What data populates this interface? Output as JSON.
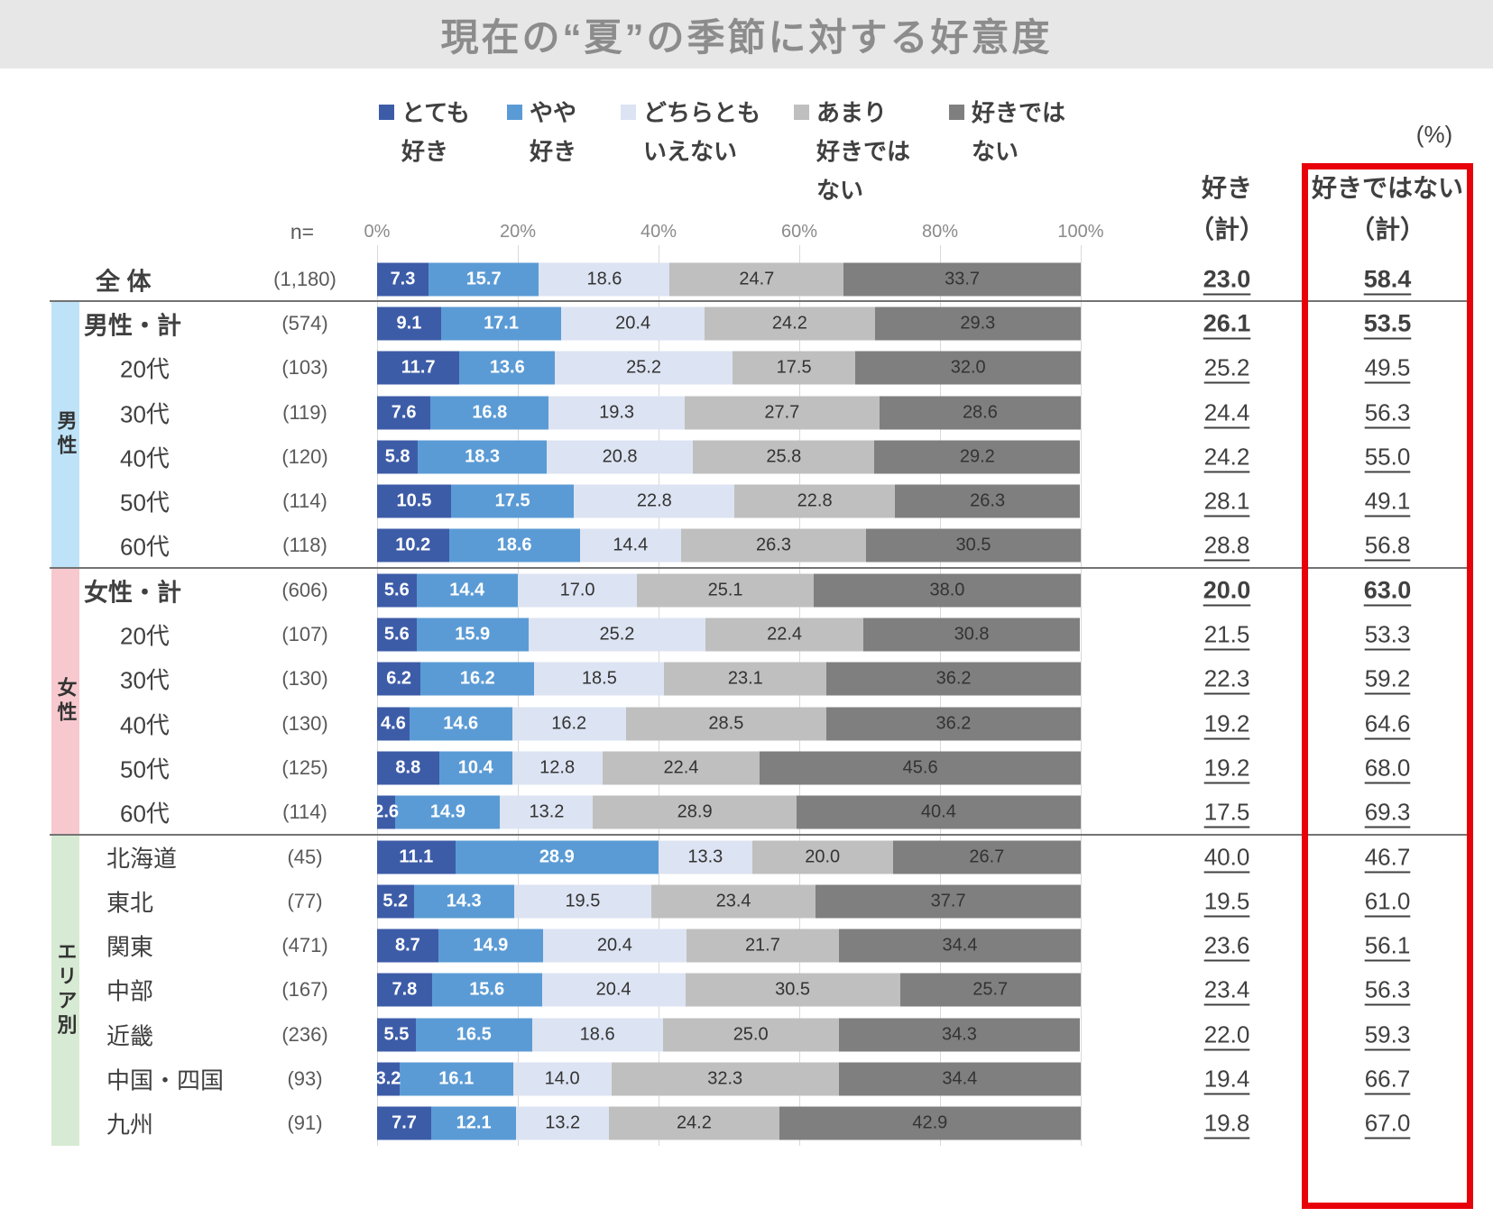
{
  "title": "現在の“夏”の季節に対する好意度",
  "unit_label": "(%)",
  "n_label": "n=",
  "column_headers": {
    "like": [
      "好き",
      "（計）"
    ],
    "dislike": [
      "好きではない",
      "（計）"
    ]
  },
  "highlight": {
    "box_color": "#e8000b",
    "target": "dislike-total-column"
  },
  "legend": [
    {
      "name": "とても好き",
      "lines": [
        "とても",
        "好き"
      ],
      "color": "#3d5ca8"
    },
    {
      "name": "やや好き",
      "lines": [
        "やや",
        "好き"
      ],
      "color": "#5b9bd5"
    },
    {
      "name": "どちらともいえない",
      "lines": [
        "どちらとも",
        "いえない"
      ],
      "color": "#dce3f2"
    },
    {
      "name": "あまり好きではない",
      "lines": [
        "あまり",
        "好きでは",
        "ない"
      ],
      "color": "#bfbfbf"
    },
    {
      "name": "好きではない",
      "lines": [
        "好きでは",
        "ない"
      ],
      "color": "#7f7f7f"
    }
  ],
  "chart_data": {
    "type": "bar",
    "stacked": true,
    "orientation": "horizontal",
    "title": "現在の“夏”の季節に対する好意度",
    "series_labels": [
      "とても好き",
      "やや好き",
      "どちらともいえない",
      "あまり好きではない",
      "好きではない"
    ],
    "series_colors": [
      "#3d5ca8",
      "#5b9bd5",
      "#dce3f2",
      "#bfbfbf",
      "#7f7f7f"
    ],
    "x_ticks": [
      "0%",
      "20%",
      "40%",
      "60%",
      "80%",
      "100%"
    ],
    "xlim": [
      0,
      100
    ],
    "legend_position": "top",
    "grid": true,
    "sections": [
      {
        "label": "男性",
        "color": "#bee3f8",
        "start": 1,
        "count": 6
      },
      {
        "label": "女性",
        "color": "#f7c9ce",
        "start": 7,
        "count": 6
      },
      {
        "label": "エリア別",
        "color": "#d7ead3",
        "start": 13,
        "count": 7
      }
    ],
    "rows": [
      {
        "label": "全 体",
        "n": "(1,180)",
        "type": "overall",
        "bold": true,
        "values": [
          7.3,
          15.7,
          18.6,
          24.7,
          33.7
        ],
        "like": "23.0",
        "dislike": "58.4"
      },
      {
        "label": "男性・計",
        "n": "(574)",
        "type": "group_total",
        "bold": true,
        "values": [
          9.1,
          17.1,
          20.4,
          24.2,
          29.3
        ],
        "like": "26.1",
        "dislike": "53.5"
      },
      {
        "label": "20代",
        "n": "(103)",
        "type": "age",
        "bold": false,
        "values": [
          11.7,
          13.6,
          25.2,
          17.5,
          32.0
        ],
        "like": "25.2",
        "dislike": "49.5"
      },
      {
        "label": "30代",
        "n": "(119)",
        "type": "age",
        "bold": false,
        "values": [
          7.6,
          16.8,
          19.3,
          27.7,
          28.6
        ],
        "like": "24.4",
        "dislike": "56.3"
      },
      {
        "label": "40代",
        "n": "(120)",
        "type": "age",
        "bold": false,
        "values": [
          5.8,
          18.3,
          20.8,
          25.8,
          29.2
        ],
        "like": "24.2",
        "dislike": "55.0"
      },
      {
        "label": "50代",
        "n": "(114)",
        "type": "age",
        "bold": false,
        "values": [
          10.5,
          17.5,
          22.8,
          22.8,
          26.3
        ],
        "like": "28.1",
        "dislike": "49.1"
      },
      {
        "label": "60代",
        "n": "(118)",
        "type": "age",
        "bold": false,
        "values": [
          10.2,
          18.6,
          14.4,
          26.3,
          30.5
        ],
        "like": "28.8",
        "dislike": "56.8"
      },
      {
        "label": "女性・計",
        "n": "(606)",
        "type": "group_total",
        "bold": true,
        "values": [
          5.6,
          14.4,
          17.0,
          25.1,
          38.0
        ],
        "like": "20.0",
        "dislike": "63.0"
      },
      {
        "label": "20代",
        "n": "(107)",
        "type": "age",
        "bold": false,
        "values": [
          5.6,
          15.9,
          25.2,
          22.4,
          30.8
        ],
        "like": "21.5",
        "dislike": "53.3"
      },
      {
        "label": "30代",
        "n": "(130)",
        "type": "age",
        "bold": false,
        "values": [
          6.2,
          16.2,
          18.5,
          23.1,
          36.2
        ],
        "like": "22.3",
        "dislike": "59.2"
      },
      {
        "label": "40代",
        "n": "(130)",
        "type": "age",
        "bold": false,
        "values": [
          4.6,
          14.6,
          16.2,
          28.5,
          36.2
        ],
        "like": "19.2",
        "dislike": "64.6"
      },
      {
        "label": "50代",
        "n": "(125)",
        "type": "age",
        "bold": false,
        "values": [
          8.8,
          10.4,
          12.8,
          22.4,
          45.6
        ],
        "like": "19.2",
        "dislike": "68.0"
      },
      {
        "label": "60代",
        "n": "(114)",
        "type": "age",
        "bold": false,
        "values": [
          2.6,
          14.9,
          13.2,
          28.9,
          40.4
        ],
        "like": "17.5",
        "dislike": "69.3"
      },
      {
        "label": "北海道",
        "n": "(45)",
        "type": "area",
        "bold": false,
        "values": [
          11.1,
          28.9,
          13.3,
          20.0,
          26.7
        ],
        "like": "40.0",
        "dislike": "46.7"
      },
      {
        "label": "東北",
        "n": "(77)",
        "type": "area",
        "bold": false,
        "values": [
          5.2,
          14.3,
          19.5,
          23.4,
          37.7
        ],
        "like": "19.5",
        "dislike": "61.0"
      },
      {
        "label": "関東",
        "n": "(471)",
        "type": "area",
        "bold": false,
        "values": [
          8.7,
          14.9,
          20.4,
          21.7,
          34.4
        ],
        "like": "23.6",
        "dislike": "56.1"
      },
      {
        "label": "中部",
        "n": "(167)",
        "type": "area",
        "bold": false,
        "values": [
          7.8,
          15.6,
          20.4,
          30.5,
          25.7
        ],
        "like": "23.4",
        "dislike": "56.3"
      },
      {
        "label": "近畿",
        "n": "(236)",
        "type": "area",
        "bold": false,
        "values": [
          5.5,
          16.5,
          18.6,
          25.0,
          34.3
        ],
        "like": "22.0",
        "dislike": "59.3"
      },
      {
        "label": "中国・四国",
        "n": "(93)",
        "type": "area",
        "bold": false,
        "values": [
          3.2,
          16.1,
          14.0,
          32.3,
          34.4
        ],
        "like": "19.4",
        "dislike": "66.7"
      },
      {
        "label": "九州",
        "n": "(91)",
        "type": "area",
        "bold": false,
        "values": [
          7.7,
          12.1,
          13.2,
          24.2,
          42.9
        ],
        "like": "19.8",
        "dislike": "67.0"
      }
    ]
  }
}
